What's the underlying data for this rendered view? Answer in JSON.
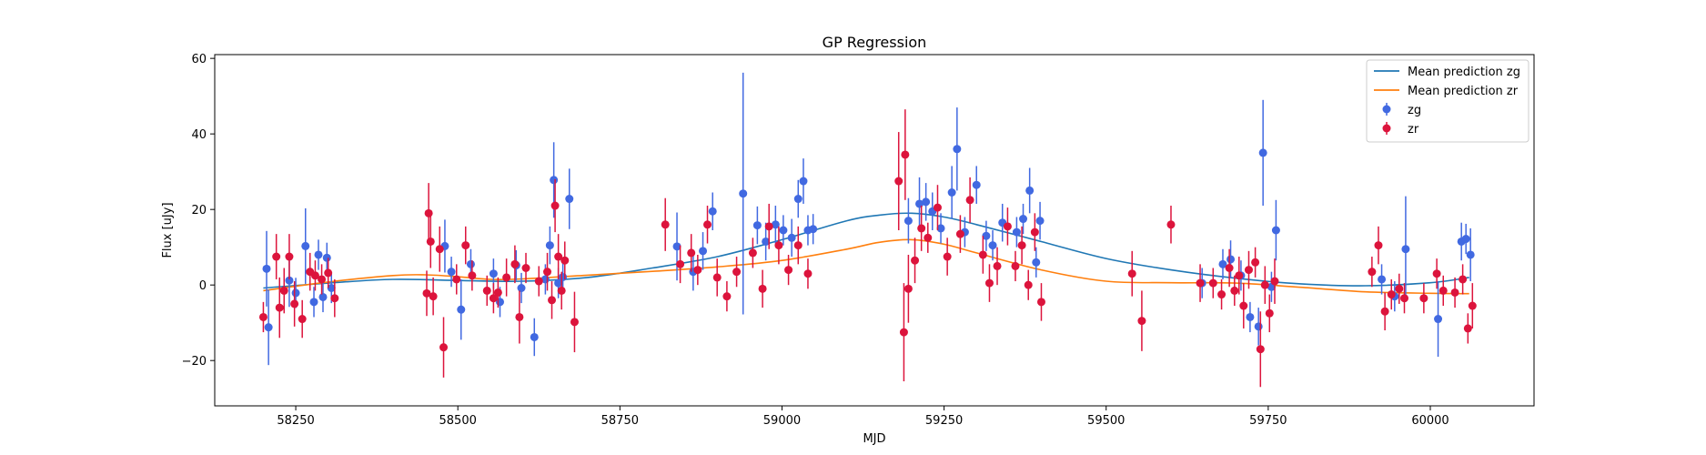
{
  "chart_data": {
    "type": "scatter",
    "title": "GP Regression",
    "xlabel": "MJD",
    "ylabel": "Flux [uJy]",
    "xlim": [
      58125,
      60160
    ],
    "ylim": [
      -32,
      61
    ],
    "xticks": [
      58250,
      58500,
      58750,
      59000,
      59250,
      59500,
      59750,
      60000
    ],
    "yticks": [
      -20,
      0,
      20,
      40,
      60
    ],
    "grid": false,
    "legend_position": "top-right",
    "legend": [
      {
        "label": "Mean prediction zg",
        "kind": "line",
        "color": "#1f77b4"
      },
      {
        "label": "Mean prediction zr",
        "kind": "line",
        "color": "#ff7f0e"
      },
      {
        "label": "zg",
        "kind": "errorbar",
        "color": "#4169e1"
      },
      {
        "label": "zr",
        "kind": "errorbar",
        "color": "#dc143c"
      }
    ],
    "series": [
      {
        "name": "Mean prediction zg",
        "kind": "line",
        "color": "#1f77b4",
        "x": [
          58200,
          58300,
          58400,
          58500,
          58600,
          58700,
          58800,
          58900,
          59000,
          59100,
          59150,
          59200,
          59250,
          59300,
          59400,
          59500,
          59600,
          59700,
          59800,
          59900,
          60000,
          60060
        ],
        "y": [
          -0.8,
          0.5,
          1.5,
          1.2,
          1.0,
          2.0,
          4.5,
          7.5,
          12.0,
          17.0,
          18.5,
          19.0,
          18.0,
          16.0,
          11.5,
          7.0,
          4.0,
          1.8,
          0.3,
          -0.2,
          0.6,
          2.0
        ]
      },
      {
        "name": "Mean prediction zr",
        "kind": "line",
        "color": "#ff7f0e",
        "x": [
          58200,
          58300,
          58400,
          58450,
          58500,
          58550,
          58600,
          58700,
          58800,
          58900,
          59000,
          59100,
          59150,
          59200,
          59250,
          59300,
          59400,
          59500,
          59600,
          59700,
          59800,
          59900,
          60000,
          60060
        ],
        "y": [
          -1.5,
          0.8,
          2.5,
          2.7,
          2.2,
          1.5,
          1.6,
          2.6,
          3.6,
          4.8,
          6.5,
          9.5,
          11.3,
          12.0,
          10.8,
          8.5,
          4.0,
          1.0,
          0.6,
          0.5,
          -0.6,
          -1.8,
          -2.2,
          -2.3
        ]
      },
      {
        "name": "zg",
        "kind": "errorbar",
        "color": "#4169e1",
        "x": [
          58205,
          58208,
          58240,
          58250,
          58265,
          58278,
          58285,
          58292,
          58298,
          58305,
          58480,
          58490,
          58505,
          58520,
          58555,
          58565,
          58590,
          58598,
          58618,
          58635,
          58642,
          58648,
          58655,
          58662,
          58672,
          58838,
          58863,
          58878,
          58893,
          58940,
          58962,
          58975,
          58990,
          59002,
          59015,
          59025,
          59033,
          59040,
          59048,
          59195,
          59212,
          59222,
          59232,
          59245,
          59262,
          59270,
          59282,
          59300,
          59315,
          59325,
          59340,
          59362,
          59372,
          59382,
          59392,
          59398,
          59648,
          59680,
          59692,
          59708,
          59722,
          59735,
          59742,
          59755,
          59762,
          59925,
          59945,
          59962,
          60012,
          60048,
          60055,
          60062
        ],
        "y": [
          4.3,
          -11.2,
          1.2,
          -2.1,
          10.3,
          -4.5,
          8.0,
          -3.2,
          7.2,
          -0.8,
          10.3,
          3.5,
          -6.5,
          5.5,
          3.0,
          -4.5,
          5.2,
          -0.8,
          -13.8,
          1.5,
          10.5,
          27.8,
          0.5,
          2.1,
          22.8,
          10.2,
          3.5,
          9.0,
          19.5,
          24.2,
          15.8,
          11.5,
          16.0,
          14.5,
          12.5,
          22.8,
          27.5,
          14.5,
          14.8,
          17.0,
          21.5,
          22.0,
          19.5,
          15.0,
          24.5,
          36.0,
          14.0,
          26.5,
          13.0,
          10.5,
          16.5,
          14.0,
          17.5,
          25.0,
          6.0,
          17.0,
          0.5,
          5.5,
          6.8,
          2.5,
          -8.5,
          -11.0,
          35.0,
          -0.5,
          14.5,
          1.5,
          -3.0,
          9.5,
          -9.0,
          11.5,
          12.2,
          8.0
        ],
        "err": [
          10,
          10,
          7,
          4,
          10,
          4,
          4,
          4,
          4,
          4,
          7,
          4,
          8,
          4,
          4,
          4,
          4,
          4,
          5,
          4,
          5,
          10,
          4,
          4,
          8,
          9,
          5,
          5,
          5,
          32,
          5,
          5,
          5,
          4,
          5,
          5,
          6,
          4,
          4,
          6,
          7,
          5,
          5,
          4,
          7,
          11,
          4,
          5,
          4,
          4,
          5,
          4,
          4,
          6,
          4,
          5,
          4,
          4,
          5,
          4,
          4,
          5,
          14,
          4,
          8,
          4,
          4,
          14,
          10,
          5,
          4,
          7
        ]
      },
      {
        "name": "zr",
        "kind": "errorbar",
        "color": "#dc143c",
        "x": [
          58200,
          58220,
          58225,
          58232,
          58240,
          58248,
          58260,
          58272,
          58280,
          58290,
          58300,
          58310,
          58452,
          58455,
          58458,
          58462,
          58472,
          58478,
          58498,
          58512,
          58522,
          58545,
          58555,
          58562,
          58575,
          58588,
          58595,
          58605,
          58625,
          58638,
          58645,
          58650,
          58655,
          58660,
          58665,
          58680,
          58820,
          58843,
          58860,
          58870,
          58885,
          58900,
          58915,
          58930,
          58955,
          58970,
          58980,
          58995,
          59010,
          59025,
          59040,
          59180,
          59188,
          59190,
          59195,
          59205,
          59215,
          59225,
          59240,
          59255,
          59275,
          59290,
          59310,
          59320,
          59332,
          59348,
          59360,
          59370,
          59380,
          59390,
          59400,
          59540,
          59555,
          59600,
          59645,
          59665,
          59678,
          59690,
          59698,
          59705,
          59712,
          59720,
          59730,
          59738,
          59745,
          59752,
          59760,
          59910,
          59920,
          59930,
          59940,
          59952,
          59960,
          59990,
          60010,
          60020,
          60038,
          60050,
          60058,
          60065
        ],
        "y": [
          -8.5,
          7.5,
          -6.0,
          -1.5,
          7.5,
          -5.0,
          -9.0,
          3.5,
          2.5,
          1.5,
          3.2,
          -3.5,
          -2.2,
          19.0,
          11.5,
          -3.0,
          9.5,
          -16.5,
          1.5,
          10.5,
          2.5,
          -1.5,
          -3.5,
          -2.0,
          2.0,
          5.5,
          -8.5,
          4.5,
          1.0,
          3.5,
          -4.0,
          21.0,
          7.5,
          -1.5,
          6.5,
          -9.8,
          16.0,
          5.5,
          8.5,
          4.0,
          16.0,
          2.0,
          -3.0,
          3.5,
          8.5,
          -1.0,
          15.5,
          10.5,
          4.0,
          10.5,
          3.0,
          27.5,
          -12.5,
          34.5,
          -1.0,
          6.5,
          15.0,
          12.5,
          20.5,
          7.5,
          13.5,
          22.5,
          8.0,
          0.5,
          5.0,
          15.5,
          5.0,
          10.5,
          0.0,
          14.0,
          -4.5,
          3.0,
          -9.5,
          16.0,
          0.5,
          0.5,
          -2.5,
          4.5,
          -1.5,
          2.5,
          -5.5,
          4.0,
          6.0,
          -17.0,
          0.0,
          -7.5,
          1.0,
          3.5,
          10.5,
          -7.0,
          -2.5,
          -1.0,
          -3.5,
          -3.5,
          3.0,
          -1.5,
          -2.0,
          1.5,
          -11.5,
          -5.5
        ],
        "err": [
          4,
          6,
          8,
          6,
          6,
          6,
          5,
          5,
          4,
          4,
          4,
          5,
          6,
          8,
          7,
          5,
          6,
          8,
          4,
          5,
          4,
          4,
          4,
          4,
          5,
          5,
          7,
          4,
          4,
          5,
          5,
          7,
          6,
          5,
          5,
          8,
          7,
          5,
          5,
          4,
          5,
          5,
          4,
          4,
          4,
          5,
          6,
          5,
          4,
          5,
          4,
          13,
          13,
          12,
          9,
          6,
          6,
          4,
          6,
          5,
          5,
          6,
          5,
          5,
          5,
          5,
          4,
          5,
          4,
          5,
          5,
          6,
          8,
          5,
          5,
          4,
          4,
          5,
          4,
          5,
          6,
          5,
          4,
          10,
          5,
          5,
          6,
          4,
          5,
          5,
          4,
          4,
          4,
          4,
          4,
          4,
          4,
          4,
          4,
          6
        ]
      }
    ]
  }
}
